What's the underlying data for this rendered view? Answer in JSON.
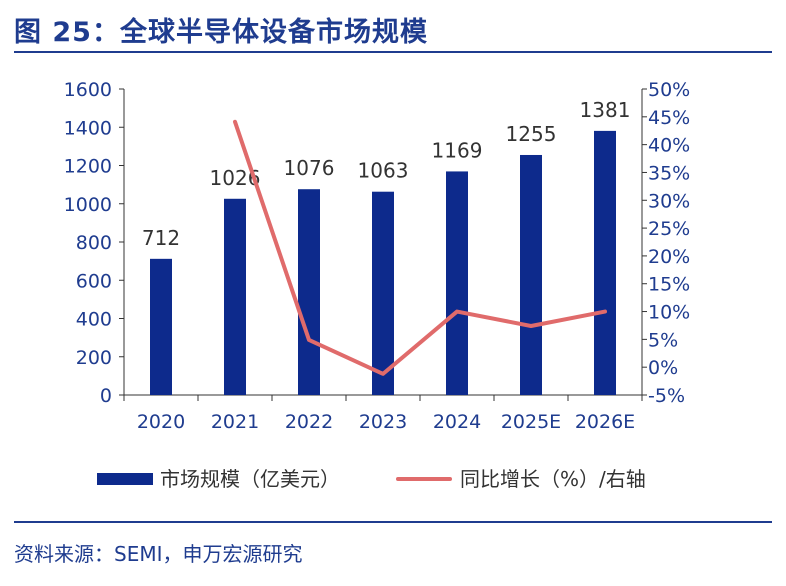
{
  "title": "图 25：全球半导体设备市场规模",
  "source": "资料来源：SEMI，申万宏源研究",
  "colors": {
    "bar": "#0d2a8c",
    "line": "#e06b6b",
    "text": "#1f3c8f",
    "axis": "#333333"
  },
  "chart_data": {
    "type": "bar",
    "categories": [
      "2020",
      "2021",
      "2022",
      "2023",
      "2024",
      "2025E",
      "2026E"
    ],
    "series": [
      {
        "name": "市场规模（亿美元）",
        "type": "bar",
        "axis": "left",
        "values": [
          712,
          1026,
          1076,
          1063,
          1169,
          1255,
          1381
        ]
      },
      {
        "name": "同比增长（%）/右轴",
        "type": "line",
        "axis": "right",
        "values": [
          null,
          44.1,
          4.9,
          -1.2,
          10.0,
          7.4,
          10.0
        ]
      }
    ],
    "data_labels": [
      "712",
      "1026",
      "1076",
      "1063",
      "1169",
      "1255",
      "1381"
    ],
    "y_left": {
      "min": 0,
      "max": 1600,
      "step": 200,
      "ticks": [
        "0",
        "200",
        "400",
        "600",
        "800",
        "1000",
        "1200",
        "1400",
        "1600"
      ]
    },
    "y_right": {
      "min": -5,
      "max": 50,
      "step": 5,
      "ticks": [
        "-5%",
        "0%",
        "5%",
        "10%",
        "15%",
        "20%",
        "25%",
        "30%",
        "35%",
        "40%",
        "45%",
        "50%"
      ]
    },
    "legend": {
      "position": "bottom",
      "entries": [
        "市场规模（亿美元）",
        "同比增长（%）/右轴"
      ]
    }
  }
}
